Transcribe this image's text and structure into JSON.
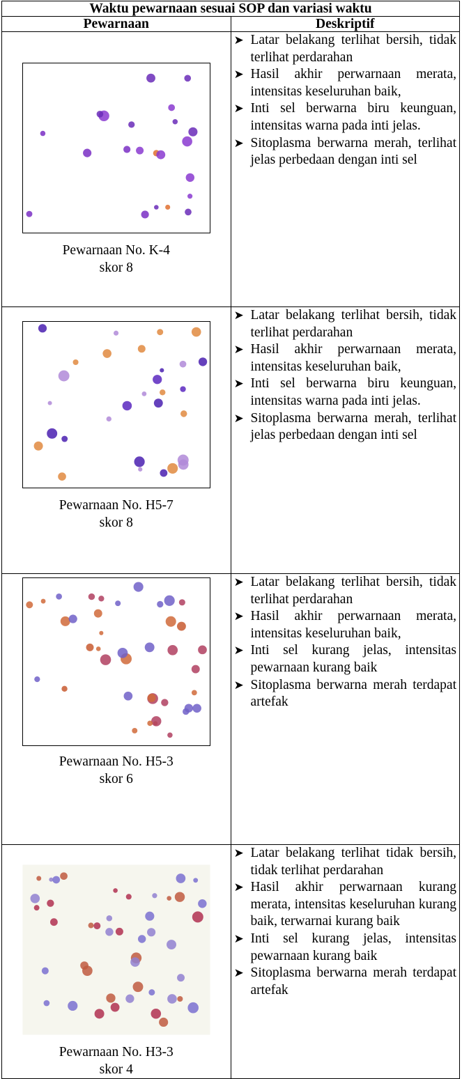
{
  "table": {
    "title": "Waktu pewarnaan sesuai SOP dan variasi waktu",
    "headers": [
      "Pewarnaan",
      "Deskriptif"
    ],
    "rows": [
      {
        "caption": [
          "Pewarnaan No. K-4",
          "skor 8"
        ],
        "items": [
          "Latar belakang terlihat bersih, tidak terlihat perdarahan",
          "Hasil akhir perwarnaan merata, intensitas keseluruhan baik,",
          "Inti sel berwarna biru keunguan, intensitas warna pada inti jelas.",
          "Sitoplasma berwarna merah, terlihat jelas perbedaan dengan inti sel"
        ]
      },
      {
        "caption": [
          "Pewarnaan No. H5-7",
          "skor 8"
        ],
        "items": [
          "Latar belakang terlihat bersih, tidak terlihat perdarahan",
          "Hasil akhir perwarnaan merata, intensitas keseluruhan baik,",
          "Inti sel berwarna biru keunguan, intensitas warna pada inti jelas.",
          "Sitoplasma berwarna merah, terlihat jelas perbedaan dengan inti sel"
        ]
      },
      {
        "caption": [
          "Pewarnaan No. H5-3",
          "skor 6"
        ],
        "items": [
          "Latar belakang terlihat bersih, tidak terlihat perdarahan",
          "Hasil akhir perwarnaan merata, intensitas keseluruhan baik,",
          "Inti sel kurang jelas, intensitas pewarnaan kurang baik",
          "Sitoplasma berwarna merah terdapat artefak"
        ]
      },
      {
        "caption": [
          "Pewarnaan No. H3-3",
          "skor 4"
        ],
        "items": [
          "Latar belakang terlihat tidak bersih, tidak terlihat perdarahan",
          "Hasil akhir perwarnaan kurang merata, intensitas keseluruhan kurang baik, terwarnai kurang baik",
          "Inti sel kurang jelas, intensitas pewarnaan kurang baik",
          "Sitoplasma berwarna merah terdapat artefak"
        ]
      }
    ]
  }
}
